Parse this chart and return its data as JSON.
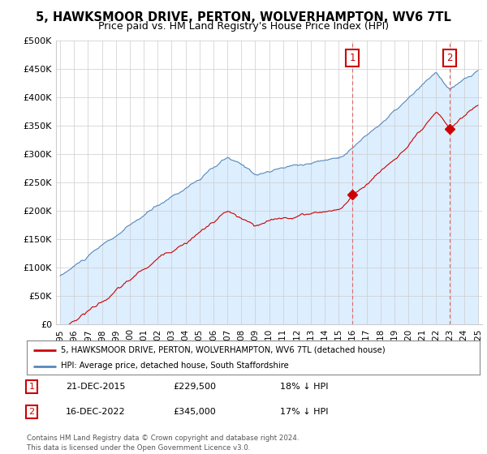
{
  "title": "5, HAWKSMOOR DRIVE, PERTON, WOLVERHAMPTON, WV6 7TL",
  "subtitle": "Price paid vs. HM Land Registry's House Price Index (HPI)",
  "ylim": [
    0,
    500000
  ],
  "yticks": [
    0,
    50000,
    100000,
    150000,
    200000,
    250000,
    300000,
    350000,
    400000,
    450000,
    500000
  ],
  "ytick_labels": [
    "£0",
    "£50K",
    "£100K",
    "£150K",
    "£200K",
    "£250K",
    "£300K",
    "£350K",
    "£400K",
    "£450K",
    "£500K"
  ],
  "background_color": "#ffffff",
  "plot_bg_color": "#ffffff",
  "line1_color": "#cc0000",
  "line2_color": "#5588bb",
  "fill_color": "#ddeeff",
  "legend_label1": "5, HAWKSMOOR DRIVE, PERTON, WOLVERHAMPTON, WV6 7TL (detached house)",
  "legend_label2": "HPI: Average price, detached house, South Staffordshire",
  "transaction1_date": "21-DEC-2015",
  "transaction1_price": "£229,500",
  "transaction1_pct": "18% ↓ HPI",
  "transaction1_year": 2015.97,
  "transaction1_price_val": 229500,
  "transaction2_date": "16-DEC-2022",
  "transaction2_price": "£345,000",
  "transaction2_pct": "17% ↓ HPI",
  "transaction2_year": 2022.97,
  "transaction2_price_val": 345000,
  "footer": "Contains HM Land Registry data © Crown copyright and database right 2024.\nThis data is licensed under the Open Government Licence v3.0.",
  "title_fontsize": 10.5,
  "subtitle_fontsize": 9
}
